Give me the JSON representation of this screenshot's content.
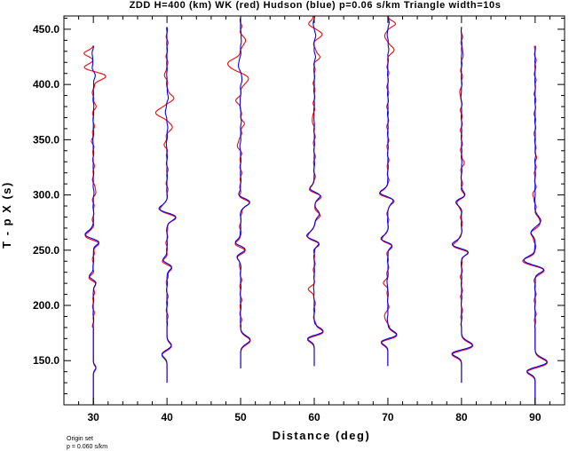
{
  "chart_data": {
    "type": "line",
    "title": "ZDD H=400 (km) WK (red) Hudson (blue) p=0.06 s/km Triangle width=10s",
    "xlabel": "Distance (deg)",
    "ylabel": "T - p X (s)",
    "xlim": [
      26,
      94
    ],
    "ylim": [
      110,
      462
    ],
    "x_ticks": [
      30,
      40,
      50,
      60,
      70,
      80,
      90
    ],
    "x_tick_labels": [
      "30",
      "40",
      "50",
      "60",
      "70",
      "80",
      "90"
    ],
    "y_ticks": [
      150,
      200,
      250,
      300,
      350,
      400,
      450
    ],
    "y_tick_labels": [
      "150.0",
      "200.0",
      "250.0",
      "300.0",
      "350.0",
      "400.0",
      "450.0"
    ],
    "grid": false,
    "series_colors": {
      "wk": "#ff0000",
      "hudson": "#0000ff"
    },
    "traces": [
      {
        "distance": 30,
        "wk_range": [
          110,
          435
        ],
        "hudson_range": [
          110,
          435
        ],
        "arrivals": [
          {
            "t": 263,
            "amp": -2.8,
            "width": 5
          },
          {
            "t": 257,
            "amp": 2.2,
            "width": 4
          },
          {
            "t": 225,
            "amp": -1.4,
            "width": 4
          },
          {
            "t": 220,
            "amp": 1.0,
            "width": 4
          },
          {
            "t": 143,
            "amp": 0.8,
            "width": 3
          }
        ],
        "precursors": [
          {
            "t": 408,
            "amp": 4.0,
            "width": 5
          },
          {
            "t": 415,
            "amp": -3.4,
            "width": 4
          },
          {
            "t": 428,
            "amp": -2.6,
            "width": 4
          },
          {
            "t": 303,
            "amp": 0.8,
            "width": 4
          },
          {
            "t": 348,
            "amp": -0.5,
            "width": 4
          },
          {
            "t": 380,
            "amp": 0.6,
            "width": 4
          }
        ]
      },
      {
        "distance": 40,
        "wk_range": [
          130,
          452
        ],
        "hudson_range": [
          130,
          452
        ],
        "arrivals": [
          {
            "t": 286,
            "amp": -3.0,
            "width": 5
          },
          {
            "t": 280,
            "amp": 3.2,
            "width": 5
          },
          {
            "t": 240,
            "amp": -1.4,
            "width": 4
          },
          {
            "t": 234,
            "amp": 1.6,
            "width": 4
          },
          {
            "t": 163,
            "amp": 1.4,
            "width": 4
          },
          {
            "t": 155,
            "amp": -1.6,
            "width": 4
          }
        ],
        "precursors": [
          {
            "t": 375,
            "amp": -3.6,
            "width": 5
          },
          {
            "t": 388,
            "amp": 2.4,
            "width": 4
          },
          {
            "t": 362,
            "amp": 1.6,
            "width": 4
          },
          {
            "t": 345,
            "amp": -0.8,
            "width": 4
          },
          {
            "t": 410,
            "amp": -0.6,
            "width": 4
          }
        ]
      },
      {
        "distance": 50,
        "wk_range": [
          143,
          460
        ],
        "hudson_range": [
          143,
          460
        ],
        "arrivals": [
          {
            "t": 293,
            "amp": 3.0,
            "width": 5
          },
          {
            "t": 298,
            "amp": -1.2,
            "width": 4
          },
          {
            "t": 250,
            "amp": 1.6,
            "width": 4
          },
          {
            "t": 256,
            "amp": -1.8,
            "width": 4
          },
          {
            "t": 243,
            "amp": -1.2,
            "width": 4
          },
          {
            "t": 168,
            "amp": 3.0,
            "width": 5
          }
        ],
        "precursors": [
          {
            "t": 418,
            "amp": -4.2,
            "width": 6
          },
          {
            "t": 405,
            "amp": 2.8,
            "width": 5
          },
          {
            "t": 440,
            "amp": 1.8,
            "width": 4
          },
          {
            "t": 385,
            "amp": -1.2,
            "width": 4
          },
          {
            "t": 365,
            "amp": 1.2,
            "width": 4
          },
          {
            "t": 345,
            "amp": -1.0,
            "width": 4
          }
        ]
      },
      {
        "distance": 60,
        "wk_range": [
          145,
          462
        ],
        "hudson_range": [
          145,
          462
        ],
        "arrivals": [
          {
            "t": 303,
            "amp": -3.0,
            "width": 5
          },
          {
            "t": 300,
            "amp": 3.5,
            "width": 5
          },
          {
            "t": 282,
            "amp": 1.6,
            "width": 5
          },
          {
            "t": 262,
            "amp": -2.4,
            "width": 5
          },
          {
            "t": 256,
            "amp": 1.8,
            "width": 4
          },
          {
            "t": 175,
            "amp": 3.2,
            "width": 5
          },
          {
            "t": 170,
            "amp": -3.0,
            "width": 4
          }
        ],
        "precursors": [
          {
            "t": 445,
            "amp": 2.6,
            "width": 4
          },
          {
            "t": 425,
            "amp": 1.8,
            "width": 4
          },
          {
            "t": 455,
            "amp": -1.6,
            "width": 4
          },
          {
            "t": 215,
            "amp": -1.6,
            "width": 4
          },
          {
            "t": 370,
            "amp": -0.8,
            "width": 4
          }
        ]
      },
      {
        "distance": 70,
        "wk_range": [
          145,
          462
        ],
        "hudson_range": [
          145,
          462
        ],
        "arrivals": [
          {
            "t": 300,
            "amp": -3.6,
            "width": 5
          },
          {
            "t": 296,
            "amp": 3.0,
            "width": 5
          },
          {
            "t": 258,
            "amp": -3.2,
            "width": 5
          },
          {
            "t": 255,
            "amp": 3.0,
            "width": 4
          },
          {
            "t": 172,
            "amp": 3.2,
            "width": 5
          },
          {
            "t": 167,
            "amp": -3.0,
            "width": 4
          }
        ],
        "precursors": [
          {
            "t": 455,
            "amp": 2.4,
            "width": 4
          },
          {
            "t": 432,
            "amp": 2.0,
            "width": 4
          },
          {
            "t": 445,
            "amp": -1.2,
            "width": 4
          },
          {
            "t": 220,
            "amp": -1.4,
            "width": 4
          },
          {
            "t": 190,
            "amp": -1.0,
            "width": 4
          }
        ]
      },
      {
        "distance": 80,
        "wk_range": [
          130,
          452
        ],
        "hudson_range": [
          130,
          452
        ],
        "arrivals": [
          {
            "t": 294,
            "amp": -2.2,
            "width": 5
          },
          {
            "t": 298,
            "amp": 2.0,
            "width": 4
          },
          {
            "t": 254,
            "amp": -3.0,
            "width": 5
          },
          {
            "t": 248,
            "amp": 2.6,
            "width": 4
          },
          {
            "t": 163,
            "amp": 3.6,
            "width": 5
          },
          {
            "t": 156,
            "amp": -3.4,
            "width": 4
          }
        ],
        "precursors": [
          {
            "t": 430,
            "amp": 0.6,
            "width": 4
          },
          {
            "t": 390,
            "amp": -0.6,
            "width": 4
          },
          {
            "t": 330,
            "amp": 0.6,
            "width": 4
          }
        ]
      },
      {
        "distance": 90,
        "wk_range": [
          110,
          435
        ],
        "hudson_range": [
          110,
          435
        ],
        "arrivals": [
          {
            "t": 276,
            "amp": 1.8,
            "width": 5
          },
          {
            "t": 265,
            "amp": -1.4,
            "width": 4
          },
          {
            "t": 240,
            "amp": -3.6,
            "width": 5
          },
          {
            "t": 232,
            "amp": 3.0,
            "width": 4
          },
          {
            "t": 148,
            "amp": 3.8,
            "width": 5
          },
          {
            "t": 140,
            "amp": -2.8,
            "width": 4
          }
        ],
        "precursors": [
          {
            "t": 335,
            "amp": 0.5,
            "width": 4
          },
          {
            "t": 300,
            "amp": -0.6,
            "width": 4
          }
        ]
      }
    ]
  },
  "notes": {
    "line1": "Origin set",
    "line2": "p = 0.060 s/km"
  }
}
